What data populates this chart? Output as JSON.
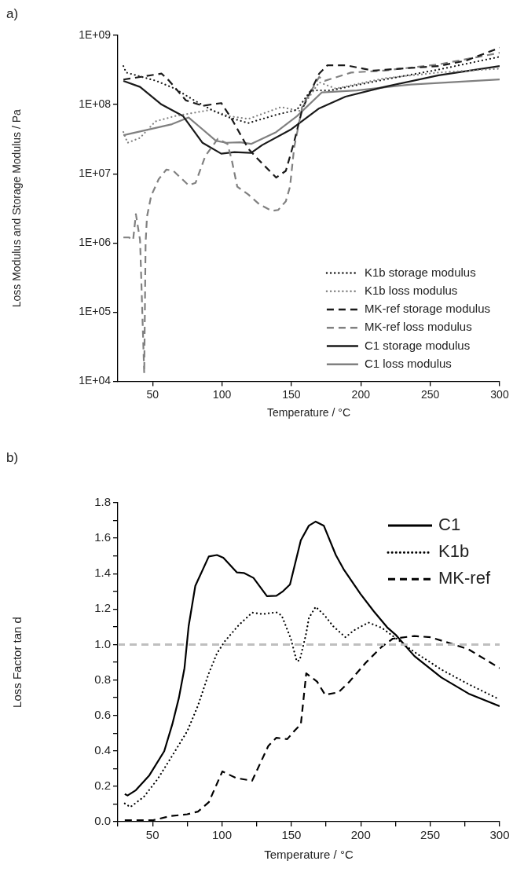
{
  "chart_data": [
    {
      "type": "line",
      "title": "a)",
      "xlabel": "Temperature / °C",
      "ylabel": "Loss Modulus and Storage Modulus / Pa",
      "log": "y",
      "legend": "bottom right",
      "xlim": [
        25,
        300
      ],
      "xticks": [
        50,
        100,
        150,
        200,
        250,
        300
      ],
      "ylim": [
        10000,
        1000000000
      ],
      "yticks": [
        {
          "value": 10000,
          "label": "1E+04"
        },
        {
          "value": 100000,
          "label": "1E+05"
        },
        {
          "value": 1000000,
          "label": "1E+06"
        },
        {
          "value": 10000000,
          "label": "1E+07"
        },
        {
          "value": 100000000,
          "label": "1E+08"
        },
        {
          "value": 1000000000,
          "label": "1E+09"
        }
      ],
      "series": [
        {
          "name": "K1b storage modulus",
          "color": "#1a1a1a",
          "line_style": "dotted",
          "x": [
            29,
            31,
            52.6,
            66,
            80,
            94,
            105,
            119,
            139,
            154,
            164,
            178,
            217,
            256,
            300
          ],
          "values": [
            360000000.0,
            290000000.0,
            220000000.0,
            170000000.0,
            115000000.0,
            81000000.0,
            65000000.0,
            54000000.0,
            71000000.0,
            84000000.0,
            160000000.0,
            160000000.0,
            230000000.0,
            320000000.0,
            490000000.0
          ]
        },
        {
          "name": "K1b loss modulus",
          "color": "#808080",
          "line_style": "dotted",
          "x": [
            29,
            32,
            41,
            52,
            66,
            92,
            105,
            119,
            142.5,
            156,
            170,
            182,
            217,
            256,
            300
          ],
          "values": [
            40000000.0,
            28000000.0,
            33000000.0,
            57000000.0,
            68000000.0,
            84000000.0,
            68000000.0,
            62000000.0,
            92000000.0,
            81000000.0,
            210000000.0,
            170000000.0,
            240000000.0,
            290000000.0,
            330000000.0
          ]
        },
        {
          "name": "MK-ref storage modulus",
          "color": "#1a1a1a",
          "line_style": "dashed",
          "x": [
            29,
            41,
            56.5,
            62,
            74,
            86,
            99.5,
            107,
            119,
            125,
            139,
            146,
            152,
            158,
            170,
            176,
            189,
            209,
            256,
            275.5,
            300
          ],
          "values": [
            230000000.0,
            250000000.0,
            280000000.0,
            220000000.0,
            115000000.0,
            96000000.0,
            105000000.0,
            62000000.0,
            23000000.0,
            17000000.0,
            8800000.0,
            11000000.0,
            29000000.0,
            88000000.0,
            280000000.0,
            370000000.0,
            370000000.0,
            310000000.0,
            360000000.0,
            430000000.0,
            660000000.0
          ]
        },
        {
          "name": "MK-ref loss modulus",
          "color": "#808080",
          "line_style": "dashed",
          "x": [
            29,
            33,
            36,
            38,
            41,
            44,
            45,
            46,
            49,
            54.5,
            60,
            65,
            76,
            81,
            88,
            97,
            104,
            107,
            111,
            119,
            127,
            136,
            140.5,
            146,
            149,
            152,
            158,
            170,
            174,
            193,
            217,
            256,
            300
          ],
          "values": [
            1200000.0,
            1200000.0,
            1100000.0,
            2600000.0,
            1100000.0,
            13000.0,
            1000000.0,
            2400000.0,
            4800000.0,
            8400000.0,
            11500000.0,
            11000000.0,
            6800000.0,
            7400000.0,
            18000000.0,
            32000000.0,
            27000000.0,
            16000000.0,
            6500000.0,
            5000000.0,
            3600000.0,
            2900000.0,
            3000000.0,
            4000000.0,
            6500000.0,
            24000000.0,
            96000000.0,
            250000000.0,
            220000000.0,
            290000000.0,
            310000000.0,
            380000000.0,
            560000000.0
          ]
        },
        {
          "name": "C1 storage modulus",
          "color": "#1a1a1a",
          "line_style": "solid",
          "x": [
            29,
            41,
            56.5,
            72,
            86,
            99.5,
            109,
            121,
            129,
            150,
            170,
            189,
            217,
            256,
            300
          ],
          "values": [
            220000000.0,
            180000000.0,
            100000000.0,
            68000000.0,
            28000000.0,
            19500000.0,
            20500000.0,
            20000000.0,
            26000000.0,
            44000000.0,
            88000000.0,
            130000000.0,
            180000000.0,
            265000000.0,
            360000000.0
          ]
        },
        {
          "name": "C1 loss modulus",
          "color": "#808080",
          "line_style": "solid",
          "x": [
            29,
            64,
            76,
            95.6,
            103,
            113,
            121,
            139,
            154,
            172,
            197,
            236,
            300
          ],
          "values": [
            36000000.0,
            52000000.0,
            65000000.0,
            30000000.0,
            28000000.0,
            28500000.0,
            27000000.0,
            40000000.0,
            68000000.0,
            150000000.0,
            160000000.0,
            195000000.0,
            230000000.0
          ]
        }
      ]
    },
    {
      "type": "line",
      "title": "b)",
      "xlabel": "Temperature / °C",
      "ylabel": "Loss Factor tan d",
      "legend": "top right",
      "xlim": [
        25,
        300
      ],
      "xticks": [
        {
          "value": 25,
          "label": null
        },
        50,
        {
          "value": 75,
          "label": null
        },
        100,
        {
          "value": 125,
          "label": null
        },
        150,
        {
          "value": 175,
          "label": null
        },
        200,
        {
          "value": 225,
          "label": null
        },
        250,
        {
          "value": 275,
          "label": null
        },
        300
      ],
      "ylim": [
        0,
        1.8
      ],
      "yticks": [
        {
          "value": 0,
          "label": "0.0"
        },
        {
          "value": 0.1,
          "label": null
        },
        {
          "value": 0.2,
          "label": "0.2"
        },
        {
          "value": 0.3,
          "label": null
        },
        {
          "value": 0.4,
          "label": "0.4"
        },
        {
          "value": 0.5,
          "label": null
        },
        {
          "value": 0.6,
          "label": "0.6"
        },
        {
          "value": 0.7,
          "label": null
        },
        {
          "value": 0.8,
          "label": "0.8"
        },
        {
          "value": 0.9,
          "label": null
        },
        {
          "value": 1.0,
          "label": "1.0"
        },
        {
          "value": 1.1,
          "label": null
        },
        {
          "value": 1.2,
          "label": "1.2"
        },
        {
          "value": 1.3,
          "label": null
        },
        {
          "value": 1.4,
          "label": "1.4"
        },
        {
          "value": 1.5,
          "label": null
        },
        {
          "value": 1.6,
          "label": "1.6"
        },
        {
          "value": 1.7,
          "label": null
        },
        {
          "value": 1.8,
          "label": "1.8"
        }
      ],
      "ref_lines": [
        {
          "axis": "y",
          "value": 1.0,
          "color": "#bfbfbf",
          "line_style": "dashed"
        }
      ],
      "series": [
        {
          "name": "C1",
          "color": "#000000",
          "line_style": "solid",
          "x": [
            30,
            32,
            38,
            47.7,
            58.4,
            64.2,
            69,
            73,
            76,
            80.8,
            90.5,
            96.4,
            101,
            110.8,
            115.7,
            122.7,
            132.4,
            139.2,
            144,
            149,
            156.8,
            162.6,
            167.5,
            173.4,
            182,
            188,
            199.7,
            209.4,
            219,
            225,
            238.6,
            258,
            277.6,
            300
          ],
          "values": [
            0.156,
            0.148,
            0.178,
            0.262,
            0.398,
            0.549,
            0.7,
            0.867,
            1.104,
            1.331,
            1.497,
            1.505,
            1.49,
            1.407,
            1.404,
            1.376,
            1.273,
            1.275,
            1.301,
            1.339,
            1.588,
            1.671,
            1.694,
            1.67,
            1.505,
            1.42,
            1.286,
            1.187,
            1.097,
            1.056,
            0.935,
            0.814,
            0.723,
            0.652
          ]
        },
        {
          "name": "K1b",
          "color": "#000000",
          "line_style": "dotted",
          "x": [
            30,
            34,
            43.8,
            53.5,
            63.2,
            75,
            82.7,
            90.5,
            96.4,
            102,
            112,
            121.7,
            129.5,
            139.2,
            143,
            149.6,
            153.9,
            156,
            160.7,
            162.6,
            167.5,
            174,
            180,
            189,
            194.8,
            205.5,
            215.2,
            238.6,
            258,
            277.6,
            300
          ],
          "values": [
            0.103,
            0.083,
            0.141,
            0.239,
            0.36,
            0.511,
            0.655,
            0.837,
            0.95,
            1.018,
            1.109,
            1.18,
            1.172,
            1.182,
            1.164,
            1.033,
            0.905,
            0.912,
            1.064,
            1.15,
            1.213,
            1.164,
            1.104,
            1.041,
            1.079,
            1.124,
            1.094,
            0.958,
            0.859,
            0.776,
            0.69
          ]
        },
        {
          "name": "MK-ref",
          "color": "#000000",
          "line_style": "dashed",
          "x": [
            30,
            37,
            50,
            63,
            75,
            82.7,
            90.5,
            100.3,
            110,
            121.7,
            133.4,
            139.2,
            147,
            152.9,
            156.8,
            160.7,
            168.5,
            174.3,
            184,
            191.9,
            203.5,
            215.2,
            223,
            238.6,
            250.3,
            266,
            277.6,
            300
          ],
          "values": [
            0.008,
            0.008,
            0.008,
            0.032,
            0.042,
            0.057,
            0.11,
            0.284,
            0.247,
            0.231,
            0.428,
            0.474,
            0.466,
            0.519,
            0.549,
            0.837,
            0.791,
            0.716,
            0.731,
            0.791,
            0.897,
            0.988,
            1.033,
            1.048,
            1.041,
            1.003,
            0.973,
            0.867
          ]
        }
      ]
    }
  ]
}
